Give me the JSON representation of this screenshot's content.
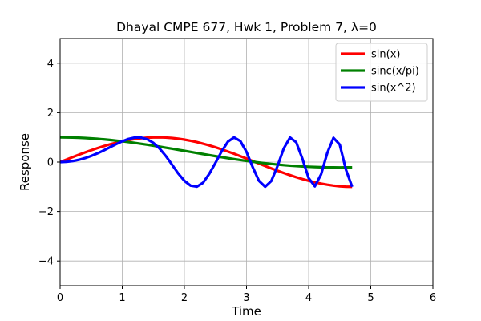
{
  "chart_data": {
    "type": "line",
    "title": "Dhayal CMPE 677, Hwk 1, Problem 7, λ=0",
    "xlabel": "Time",
    "ylabel": "Response",
    "xlim": [
      0,
      6
    ],
    "ylim": [
      -5,
      5
    ],
    "xticks": [
      0,
      1,
      2,
      3,
      4,
      5,
      6
    ],
    "yticks": [
      -4,
      -2,
      0,
      2,
      4
    ],
    "grid": true,
    "legend_position": "top-right",
    "x": [
      0,
      0.1,
      0.2,
      0.3,
      0.4,
      0.5,
      0.6,
      0.7,
      0.8,
      0.9,
      1.0,
      1.1,
      1.2,
      1.3,
      1.4,
      1.5,
      1.6,
      1.7,
      1.8,
      1.9,
      2.0,
      2.1,
      2.2,
      2.3,
      2.4,
      2.5,
      2.6,
      2.7,
      2.8,
      2.9,
      3.0,
      3.1,
      3.2,
      3.3,
      3.4,
      3.5,
      3.6,
      3.7,
      3.8,
      3.9,
      4.0,
      4.1,
      4.2,
      4.3,
      4.4,
      4.5,
      4.6,
      4.7
    ],
    "series": [
      {
        "name": "sin(x)",
        "color": "#ff0000",
        "values": [
          0.0,
          0.0998,
          0.1987,
          0.2955,
          0.3894,
          0.4794,
          0.5646,
          0.6442,
          0.7174,
          0.7833,
          0.8415,
          0.8912,
          0.932,
          0.9636,
          0.9854,
          0.9975,
          0.9996,
          0.9917,
          0.9738,
          0.9463,
          0.9093,
          0.8632,
          0.8085,
          0.7457,
          0.6755,
          0.5985,
          0.5155,
          0.4274,
          0.335,
          0.2392,
          0.1411,
          0.0416,
          -0.0584,
          -0.1577,
          -0.2555,
          -0.3508,
          -0.4425,
          -0.5298,
          -0.6119,
          -0.6878,
          -0.7568,
          -0.8183,
          -0.8716,
          -0.9162,
          -0.9516,
          -0.9775,
          -0.9937,
          -0.9999
        ]
      },
      {
        "name": "sinc(x/pi)",
        "color": "#008000",
        "values": [
          1.0,
          0.9983,
          0.9933,
          0.985,
          0.9735,
          0.9589,
          0.941,
          0.9203,
          0.8967,
          0.8704,
          0.8415,
          0.8102,
          0.7767,
          0.7412,
          0.7039,
          0.665,
          0.6247,
          0.5834,
          0.541,
          0.4981,
          0.4546,
          0.411,
          0.3675,
          0.3242,
          0.2815,
          0.2394,
          0.1983,
          0.1583,
          0.1196,
          0.0825,
          0.047,
          0.0134,
          -0.0182,
          -0.0478,
          -0.0752,
          -0.1002,
          -0.1229,
          -0.1432,
          -0.161,
          -0.1764,
          -0.1892,
          -0.1996,
          -0.2075,
          -0.2131,
          -0.2163,
          -0.2172,
          -0.216,
          -0.2127
        ]
      },
      {
        "name": "sin(x^2)",
        "color": "#0000ff",
        "values": [
          0.0,
          0.01,
          0.04,
          0.09,
          0.1593,
          0.2474,
          0.3523,
          0.4706,
          0.5972,
          0.7243,
          0.8415,
          0.9356,
          0.9915,
          0.993,
          0.925,
          0.7781,
          0.5494,
          0.2486,
          -0.1006,
          -0.4582,
          -0.7568,
          -0.9521,
          -0.9931,
          -0.8367,
          -0.4776,
          -0.0332,
          0.4346,
          0.8252,
          0.9999,
          0.8537,
          0.4121,
          -0.2057,
          -0.7587,
          -0.9956,
          -0.7625,
          -0.1534,
          0.5557,
          0.9924,
          0.8032,
          0.1302,
          -0.6482,
          -0.9798,
          -0.5003,
          0.3693,
          0.9808,
          0.7131,
          -0.3051,
          -0.9994
        ]
      }
    ]
  }
}
